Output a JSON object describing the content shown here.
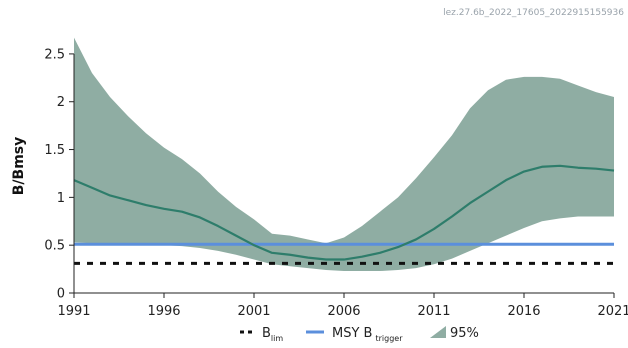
{
  "header": {
    "plot_id": "lez.27.6b_2022_17605_2022915155936"
  },
  "chart_data": {
    "type": "area",
    "ylabel": "B/Bmsy",
    "xlim": [
      1991,
      2021
    ],
    "ylim": [
      0,
      2.75
    ],
    "x_ticks": [
      1991,
      1996,
      2001,
      2006,
      2011,
      2016,
      2021
    ],
    "y_ticks": [
      0,
      0.5,
      1,
      1.5,
      2,
      2.5
    ],
    "y_tick_labels": [
      "0",
      "0.5",
      "1",
      "1.5",
      "2",
      "2.5"
    ],
    "grid": false,
    "legend_position": "bottom",
    "legend": {
      "blim": {
        "main": "B",
        "sub": "lim"
      },
      "msy": {
        "main": "MSY B",
        "sub": "trigger"
      },
      "ci": {
        "label": "95%"
      }
    },
    "x": [
      1991,
      1992,
      1993,
      1994,
      1995,
      1996,
      1997,
      1998,
      1999,
      2000,
      2001,
      2002,
      2003,
      2004,
      2005,
      2006,
      2007,
      2008,
      2009,
      2010,
      2011,
      2012,
      2013,
      2014,
      2015,
      2016,
      2017,
      2018,
      2019,
      2020,
      2021
    ],
    "series": [
      {
        "id": "estimate",
        "color": "#2e7d6b",
        "values": [
          1.18,
          1.1,
          1.02,
          0.97,
          0.92,
          0.88,
          0.85,
          0.79,
          0.7,
          0.6,
          0.5,
          0.42,
          0.4,
          0.37,
          0.35,
          0.35,
          0.38,
          0.42,
          0.48,
          0.56,
          0.67,
          0.8,
          0.94,
          1.06,
          1.18,
          1.27,
          1.32,
          1.33,
          1.31,
          1.3,
          1.28
        ]
      }
    ],
    "band": {
      "id": "ci95",
      "color": "#8fada3",
      "lower": [
        0.53,
        0.52,
        0.52,
        0.51,
        0.51,
        0.5,
        0.49,
        0.47,
        0.44,
        0.4,
        0.35,
        0.3,
        0.28,
        0.26,
        0.24,
        0.23,
        0.23,
        0.23,
        0.24,
        0.26,
        0.3,
        0.36,
        0.44,
        0.52,
        0.6,
        0.68,
        0.75,
        0.78,
        0.8,
        0.8,
        0.8
      ],
      "upper": [
        2.67,
        2.3,
        2.05,
        1.85,
        1.67,
        1.52,
        1.4,
        1.25,
        1.06,
        0.9,
        0.77,
        0.62,
        0.6,
        0.56,
        0.52,
        0.58,
        0.7,
        0.85,
        1.0,
        1.2,
        1.42,
        1.65,
        1.93,
        2.12,
        2.23,
        2.26,
        2.26,
        2.24,
        2.17,
        2.1,
        2.05
      ]
    },
    "reference_lines": [
      {
        "id": "blim",
        "value": 0.31,
        "color": "#111111",
        "style": "dashed"
      },
      {
        "id": "msy",
        "value": 0.51,
        "color": "#5b8fdc",
        "style": "solid"
      }
    ]
  }
}
